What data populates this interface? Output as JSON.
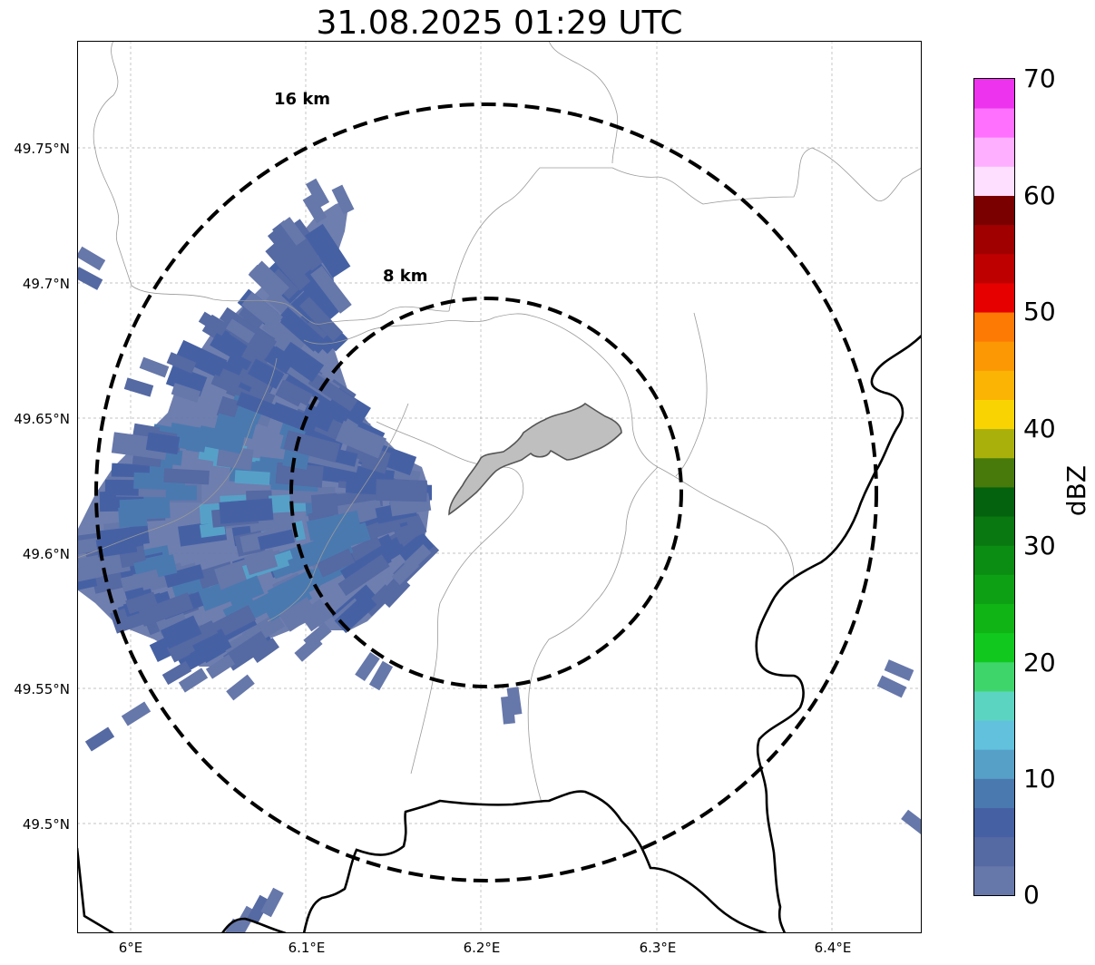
{
  "title": "31.08.2025 01:29 UTC",
  "map": {
    "lat_labels": [
      "49.75°N",
      "49.7°N",
      "49.65°N",
      "49.6°N",
      "49.55°N",
      "49.5°N"
    ],
    "lon_labels": [
      "6°E",
      "6.1°E",
      "6.2°E",
      "6.3°E",
      "6.4°E"
    ],
    "rings": [
      {
        "label": "8 km",
        "radius_km": 8
      },
      {
        "label": "16 km",
        "radius_km": 16
      }
    ],
    "colors": {
      "border": "#000000",
      "admin_lines": "#9a9a9a",
      "city_fill": "#bfbfbf",
      "grid": "#b0b0b0"
    }
  },
  "colorbar": {
    "label": "dBZ",
    "ticks": [
      "0",
      "10",
      "20",
      "30",
      "40",
      "50",
      "60",
      "70"
    ],
    "range": [
      0,
      70
    ],
    "step": 2.5,
    "colors": [
      "#6677aa",
      "#5569a3",
      "#4561a4",
      "#4a79b0",
      "#56a0c8",
      "#62c1dc",
      "#5cd4c2",
      "#3ed66a",
      "#11c91e",
      "#10b414",
      "#0ea014",
      "#0b8c12",
      "#097810",
      "#04620e",
      "#477a0b",
      "#a9b00b",
      "#fad402",
      "#fbb404",
      "#fd9805",
      "#fd7a05",
      "#e60000",
      "#bf0000",
      "#a00000",
      "#7a0000",
      "#ffdfff",
      "#ffafff",
      "#ff70ff",
      "#ee33ee"
    ]
  }
}
